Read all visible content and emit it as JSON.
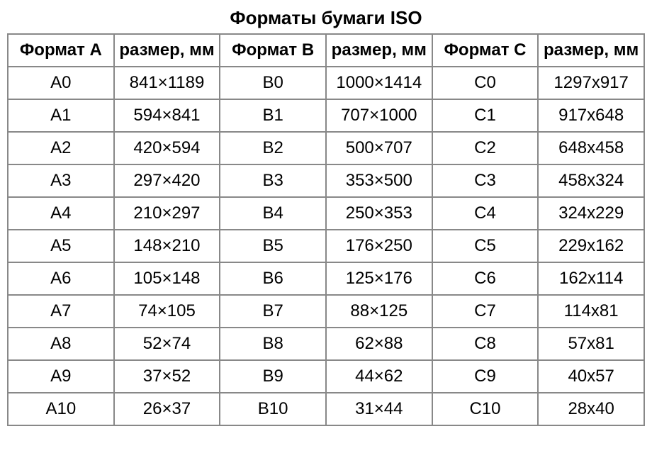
{
  "title": "Форматы бумаги ISO",
  "table": {
    "headers": [
      "Формат А",
      "размер, мм",
      "Формат В",
      "размер, мм",
      "Формат С",
      "размер, мм"
    ],
    "rows": [
      [
        "A0",
        "841×1189",
        "B0",
        "1000×1414",
        "C0",
        "1297x917"
      ],
      [
        "A1",
        "594×841",
        "B1",
        "707×1000",
        "C1",
        "917x648"
      ],
      [
        "A2",
        "420×594",
        "B2",
        "500×707",
        "C2",
        "648x458"
      ],
      [
        "A3",
        "297×420",
        "B3",
        "353×500",
        "C3",
        "458x324"
      ],
      [
        "A4",
        "210×297",
        "B4",
        "250×353",
        "C4",
        "324x229"
      ],
      [
        "A5",
        "148×210",
        "B5",
        "176×250",
        "C5",
        "229x162"
      ],
      [
        "A6",
        "105×148",
        "B6",
        "125×176",
        "C6",
        "162x114"
      ],
      [
        "A7",
        "74×105",
        "B7",
        "88×125",
        "C7",
        "114x81"
      ],
      [
        "A8",
        "52×74",
        "B8",
        "62×88",
        "C8",
        "57x81"
      ],
      [
        "A9",
        "37×52",
        "B9",
        "44×62",
        "C9",
        "40x57"
      ],
      [
        "A10",
        "26×37",
        "B10",
        "31×44",
        "C10",
        "28x40"
      ]
    ],
    "border_color": "#888888",
    "background_color": "#ffffff",
    "text_color": "#000000",
    "header_fontsize": 24,
    "cell_fontsize": 24,
    "title_fontsize": 26
  }
}
